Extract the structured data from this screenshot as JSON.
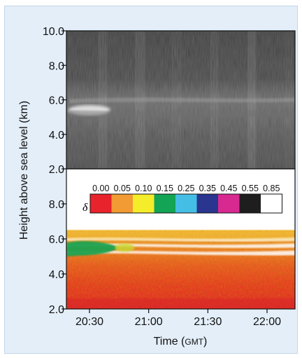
{
  "chart_data": [
    {
      "type": "heatmap",
      "panel": "top",
      "colormap": "grayscale",
      "ylim": [
        2.0,
        10.0
      ],
      "yticks": [
        "2.0",
        "4.0",
        "6.0",
        "8.0",
        "10.0"
      ],
      "features": [
        {
          "kind": "bright-layer",
          "y_km": [
            5.8,
            6.2
          ],
          "x_time": [
            "20:20",
            "22:15"
          ]
        },
        {
          "kind": "bright-patch",
          "y_km": [
            5.1,
            5.7
          ],
          "x_time": [
            "20:20",
            "20:45"
          ]
        },
        {
          "kind": "layer",
          "y_km": [
            5.0,
            5.4
          ],
          "x_time": [
            "20:20",
            "22:15"
          ]
        }
      ]
    },
    {
      "type": "heatmap",
      "panel": "bottom",
      "colormap": "depolarization",
      "ylim": [
        2.0,
        10.0
      ],
      "yticks": [
        "2.0",
        "4.0",
        "6.0",
        "8.0"
      ],
      "colorbar": {
        "symbol": "δ",
        "ticks": [
          "0.00",
          "0.05",
          "0.10",
          "0.15",
          "0.25",
          "0.35",
          "0.45",
          "0.55",
          "0.85"
        ],
        "colors": [
          "#e8232b",
          "#f29a33",
          "#f5ec2a",
          "#13a455",
          "#45bee6",
          "#2a3590",
          "#d72990",
          "#1e1e1e",
          "#ffffff"
        ]
      },
      "features": [
        {
          "kind": "low-delta",
          "delta": [
            0.1,
            0.15
          ],
          "y_km": [
            5.0,
            6.0
          ],
          "x_time": [
            "20:20",
            "20:45"
          ]
        },
        {
          "kind": "cloud-top",
          "y_km": [
            5.5,
            6.5
          ],
          "x_time": [
            "20:20",
            "22:15"
          ]
        }
      ]
    }
  ],
  "axes": {
    "ylabel": "Height above sea level (km)",
    "xlabel_main": "Time (",
    "xlabel_unit": "GMT",
    "xlabel_close": ")",
    "xticks": [
      "20:30",
      "21:00",
      "21:30",
      "22:00"
    ]
  },
  "colors": {
    "frame_bg": "#e3eef8",
    "frame_border": "#c4d7e9"
  }
}
